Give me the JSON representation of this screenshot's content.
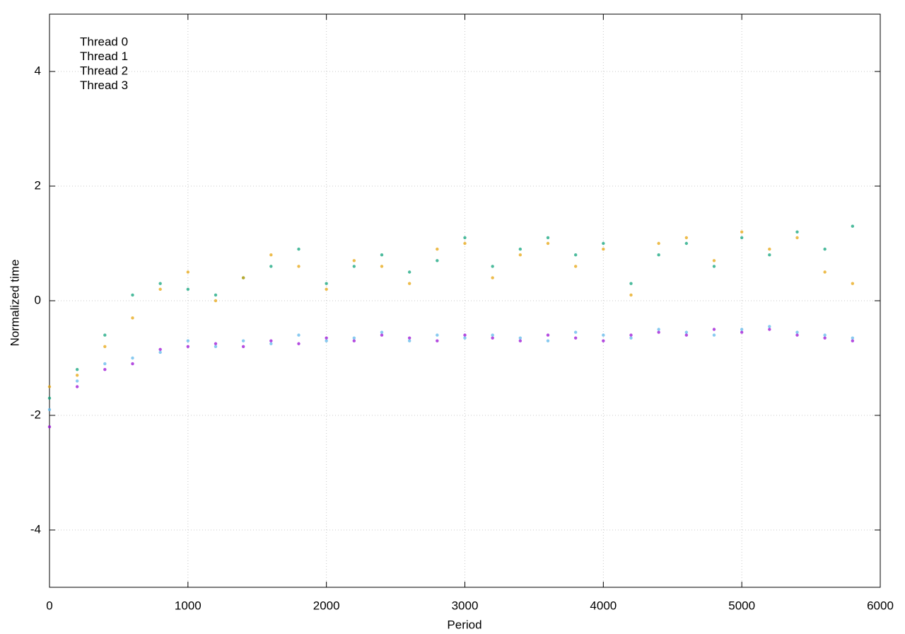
{
  "chart_data": {
    "type": "scatter",
    "xlabel": "Period",
    "ylabel": "Normalized time",
    "xlim": [
      0,
      6000
    ],
    "ylim": [
      -5,
      5
    ],
    "xticks": [
      0,
      1000,
      2000,
      3000,
      4000,
      5000,
      6000
    ],
    "yticks": [
      -4,
      -2,
      0,
      2,
      4
    ],
    "grid": true,
    "legend": "upper left",
    "x": [
      0,
      200,
      400,
      600,
      800,
      1000,
      1200,
      1400,
      1600,
      1800,
      2000,
      2200,
      2400,
      2600,
      2800,
      3000,
      3200,
      3400,
      3600,
      3800,
      4000,
      4200,
      4400,
      4600,
      4800,
      5000,
      5200,
      5400,
      5600,
      5800
    ],
    "series": [
      {
        "name": "Thread 0",
        "color": "#9400d3",
        "values": [
          -2.2,
          -1.5,
          -1.2,
          -1.1,
          -0.85,
          -0.8,
          -0.75,
          -0.8,
          -0.7,
          -0.75,
          -0.65,
          -0.7,
          -0.6,
          -0.65,
          -0.7,
          -0.6,
          -0.65,
          -0.7,
          -0.6,
          -0.65,
          -0.7,
          -0.6,
          -0.55,
          -0.6,
          -0.5,
          -0.55,
          -0.5,
          -0.6,
          -0.65,
          -0.7
        ]
      },
      {
        "name": "Thread 1",
        "color": "#009e73",
        "values": [
          -1.7,
          -1.2,
          -0.6,
          0.1,
          0.3,
          0.2,
          0.1,
          0.4,
          0.6,
          0.9,
          0.3,
          0.6,
          0.8,
          0.5,
          0.7,
          1.1,
          0.6,
          0.9,
          1.1,
          0.8,
          1.0,
          0.3,
          0.8,
          1.0,
          0.6,
          1.1,
          0.8,
          1.2,
          0.9,
          1.3
        ]
      },
      {
        "name": "Thread 2",
        "color": "#56b4e9",
        "values": [
          -1.9,
          -1.4,
          -1.1,
          -1.0,
          -0.9,
          -0.7,
          -0.8,
          -0.7,
          -0.75,
          -0.6,
          -0.7,
          -0.65,
          -0.55,
          -0.7,
          -0.6,
          -0.65,
          -0.6,
          -0.65,
          -0.7,
          -0.55,
          -0.6,
          -0.65,
          -0.5,
          -0.55,
          -0.6,
          -0.5,
          -0.45,
          -0.55,
          -0.6,
          -0.65
        ]
      },
      {
        "name": "Thread 3",
        "color": "#e69f00",
        "values": [
          -1.5,
          -1.3,
          -0.8,
          -0.3,
          0.2,
          0.5,
          0.0,
          0.4,
          0.8,
          0.6,
          0.2,
          0.7,
          0.6,
          0.3,
          0.9,
          1.0,
          0.4,
          0.8,
          1.0,
          0.6,
          0.9,
          0.1,
          1.0,
          1.1,
          0.7,
          1.2,
          0.9,
          1.1,
          0.5,
          0.3
        ]
      }
    ]
  }
}
